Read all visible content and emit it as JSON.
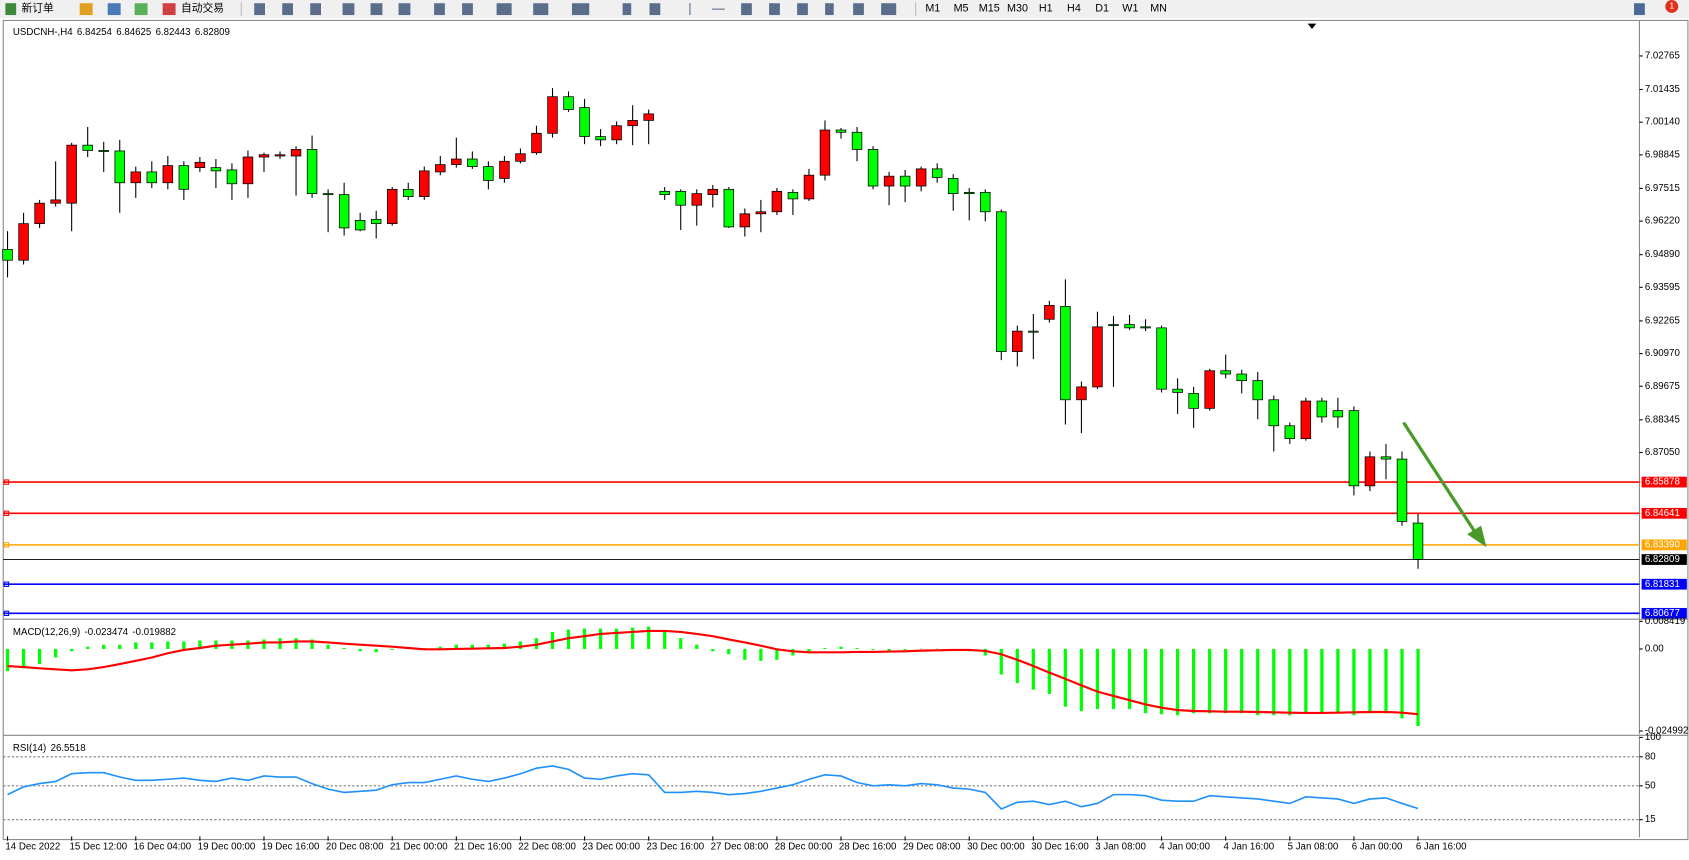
{
  "toolbar": {
    "new_order": "新订单",
    "auto_trading": "自动交易",
    "timeframes": [
      "M1",
      "M5",
      "M15",
      "M30",
      "H1",
      "H4",
      "D1",
      "W1",
      "MN"
    ],
    "badge": 1
  },
  "chart_data": [
    {
      "type": "candlestick",
      "title": "USDCNH-,H4",
      "up_color": "#ff0000",
      "down_color": "#00ff00",
      "ylim": [
        6.8053,
        7.0413
      ],
      "yticks": [
        7.02765,
        7.01435,
        {
          "value": 7.0014,
          "label": "7.00140"
        },
        6.98845,
        6.97515,
        {
          "value": 6.9622,
          "label": "6.96220"
        },
        {
          "value": 6.9489,
          "label": "6.94890"
        },
        6.93595,
        6.92265,
        {
          "value": 6.9097,
          "label": "6.90970"
        },
        6.89675,
        6.88345,
        {
          "value": 6.8705,
          "label": "6.87050"
        }
      ],
      "hlines": [
        {
          "value": 6.85878,
          "color": "#ff0000"
        },
        {
          "value": 6.84641,
          "color": "#ff0000"
        },
        {
          "value": 6.8339,
          "label": "6.83390",
          "color": "#ffa500"
        },
        {
          "value": 6.81831,
          "color": "#0000ff"
        },
        {
          "value": 6.80677,
          "color": "#0000ff"
        }
      ],
      "categories": [
        "14 Dec 2022",
        null,
        null,
        null,
        "15 Dec 12:00",
        null,
        null,
        null,
        "16 Dec 04:00",
        null,
        null,
        null,
        "19 Dec 00:00",
        null,
        null,
        null,
        "19 Dec 16:00",
        null,
        null,
        null,
        "20 Dec 08:00",
        null,
        null,
        null,
        "21 Dec 00:00",
        null,
        null,
        null,
        "21 Dec 16:00",
        null,
        null,
        null,
        "22 Dec 08:00",
        null,
        null,
        null,
        "23 Dec 00:00",
        null,
        null,
        null,
        "23 Dec 16:00",
        null,
        null,
        null,
        "27 Dec 08:00",
        null,
        null,
        null,
        "28 Dec 00:00",
        null,
        null,
        null,
        "28 Dec 16:00",
        null,
        null,
        null,
        "29 Dec 08:00",
        null,
        null,
        null,
        "30 Dec 00:00",
        null,
        null,
        null,
        "30 Dec 16:00",
        null,
        null,
        null,
        "3 Jan 08:00",
        null,
        null,
        null,
        "4 Jan 00:00",
        null,
        null,
        null,
        "4 Jan 16:00",
        null,
        null,
        null,
        "5 Jan 08:00",
        null,
        null,
        null,
        "6 Jan 00:00",
        null,
        null,
        null,
        "6 Jan 16:00"
      ],
      "candles": [
        [
          6.951,
          6.9582,
          6.9399,
          6.9467
        ],
        [
          6.9467,
          6.9655,
          6.945,
          6.9612
        ],
        [
          6.9612,
          6.9706,
          6.9595,
          6.9693
        ],
        [
          6.9693,
          6.9859,
          6.968,
          6.9706
        ],
        [
          6.9693,
          6.9932,
          6.9582,
          6.9923
        ],
        [
          6.9923,
          6.9995,
          6.9876,
          6.9902
        ],
        [
          6.9902,
          6.9936,
          6.9817,
          6.99
        ],
        [
          6.99,
          6.9944,
          6.9655,
          6.9774
        ],
        [
          6.9774,
          6.9838,
          6.9714,
          6.9817
        ],
        [
          6.9817,
          6.9859,
          6.9753,
          6.9774
        ],
        [
          6.9774,
          6.988,
          6.9748,
          6.9842
        ],
        [
          6.9842,
          6.9859,
          6.9706,
          6.9748
        ],
        [
          6.9834,
          6.9876,
          6.9817,
          6.9855
        ],
        [
          6.9834,
          6.9868,
          6.9753,
          6.9821
        ],
        [
          6.9825,
          6.9851,
          6.9706,
          6.977
        ],
        [
          6.977,
          6.9902,
          6.9714,
          6.9876
        ],
        [
          6.9876,
          6.9893,
          6.9817,
          6.9885
        ],
        [
          6.988,
          6.9898,
          6.9868,
          6.9885
        ],
        [
          6.988,
          6.9919,
          6.9723,
          6.9906
        ],
        [
          6.9906,
          6.9961,
          6.9714,
          6.9731
        ],
        [
          6.9731,
          6.9748,
          6.9578,
          6.9727
        ],
        [
          6.9727,
          6.9774,
          6.9565,
          6.9595
        ],
        [
          6.9625,
          6.9655,
          6.9582,
          6.9587
        ],
        [
          6.9629,
          6.9663,
          6.9553,
          6.9612
        ],
        [
          6.9612,
          6.9757,
          6.9604,
          6.9748
        ],
        [
          6.9748,
          6.9774,
          6.9706,
          6.9719
        ],
        [
          6.9719,
          6.9838,
          6.9706,
          6.9821
        ],
        [
          6.9817,
          6.988,
          6.9804,
          6.9846
        ],
        [
          6.9846,
          6.9953,
          6.9834,
          6.9868
        ],
        [
          6.9868,
          6.9898,
          6.9829,
          6.9838
        ],
        [
          6.9838,
          6.9859,
          6.9748,
          6.9783
        ],
        [
          6.9791,
          6.988,
          6.9774,
          6.9859
        ],
        [
          6.9859,
          6.991,
          6.9851,
          6.9889
        ],
        [
          6.9893,
          7.0,
          6.9885,
          6.997
        ],
        [
          6.997,
          7.0149,
          6.9953,
          7.0115
        ],
        [
          7.0115,
          7.0136,
          7.0055,
          7.0064
        ],
        [
          7.0072,
          7.0106,
          6.9927,
          6.9957
        ],
        [
          6.9957,
          6.9987,
          6.9919,
          6.9944
        ],
        [
          6.9944,
          7.0017,
          6.9927,
          7.0
        ],
        [
          7.0,
          7.0081,
          6.9923,
          7.0021
        ],
        [
          7.0021,
          7.0064,
          6.9927,
          7.0047
        ],
        [
          6.974,
          6.9757,
          6.9706,
          6.9727
        ],
        [
          6.974,
          6.9748,
          6.9587,
          6.9685
        ],
        [
          6.9685,
          6.9748,
          6.9604,
          6.9731
        ],
        [
          6.9727,
          6.9765,
          6.9676,
          6.9748
        ],
        [
          6.9748,
          6.9757,
          6.9595,
          6.9599
        ],
        [
          6.9599,
          6.9672,
          6.9561,
          6.9651
        ],
        [
          6.9651,
          6.9706,
          6.9578,
          6.9659
        ],
        [
          6.9659,
          6.9753,
          6.9646,
          6.974
        ],
        [
          6.9736,
          6.9748,
          6.9646,
          6.971
        ],
        [
          6.971,
          6.9829,
          6.9702,
          6.9804
        ],
        [
          6.9804,
          7.0021,
          6.9783,
          6.9983
        ],
        [
          6.9983,
          6.9991,
          6.9949,
          6.9974
        ],
        [
          6.9974,
          6.9995,
          6.9859,
          6.9906
        ],
        [
          6.9906,
          6.9919,
          6.9748,
          6.9761
        ],
        [
          6.9761,
          6.9817,
          6.9685,
          6.98
        ],
        [
          6.98,
          6.9825,
          6.9697,
          6.9761
        ],
        [
          6.9761,
          6.9838,
          6.974,
          6.9829
        ],
        [
          6.9829,
          6.9851,
          6.9774,
          6.9795
        ],
        [
          6.9791,
          6.9808,
          6.9663,
          6.9731
        ],
        [
          6.9736,
          6.9753,
          6.9625,
          6.9731
        ],
        [
          6.9736,
          6.9748,
          6.9621,
          6.9659
        ],
        [
          6.9659,
          6.9668,
          6.9071,
          6.9105
        ],
        [
          6.9105,
          6.9208,
          6.9046,
          6.9186
        ],
        [
          6.9186,
          6.9254,
          6.9075,
          6.9184
        ],
        [
          6.9233,
          6.9306,
          6.922,
          6.9288
        ],
        [
          6.9284,
          6.9391,
          6.8816,
          6.8914
        ],
        [
          6.8914,
          6.8986,
          6.8782,
          6.8965
        ],
        [
          6.8965,
          6.9263,
          6.8956,
          6.9203
        ],
        [
          6.9212,
          6.9246,
          6.8965,
          6.9208
        ],
        [
          6.9212,
          6.925,
          6.9191,
          6.9199
        ],
        [
          6.9203,
          6.9233,
          6.9186,
          6.9199
        ],
        [
          6.9199,
          6.9208,
          6.8943,
          6.8956
        ],
        [
          6.8956,
          6.8999,
          6.8858,
          6.8943
        ],
        [
          6.8939,
          6.8965,
          6.8803,
          6.888
        ],
        [
          6.888,
          6.9037,
          6.8871,
          6.9029
        ],
        [
          6.9029,
          6.9093,
          6.8999,
          6.9016
        ],
        [
          6.9016,
          6.9033,
          6.8939,
          6.899
        ],
        [
          6.899,
          6.9024,
          6.8837,
          6.8914
        ],
        [
          6.8914,
          6.8931,
          6.8709,
          6.8811
        ],
        [
          6.8811,
          6.8824,
          6.8739,
          6.876
        ],
        [
          6.876,
          6.8922,
          6.8752,
          6.8909
        ],
        [
          6.8909,
          6.8922,
          6.8824,
          6.8846
        ],
        [
          6.8871,
          6.8922,
          6.8803,
          6.8846
        ],
        [
          6.8871,
          6.8888,
          6.8535,
          6.8573
        ],
        [
          6.8573,
          6.8709,
          6.8552,
          6.8688
        ],
        [
          6.8688,
          6.8739,
          6.8599,
          6.8679
        ],
        [
          6.8679,
          6.8709,
          6.8415,
          6.8432
        ],
        [
          6.84254,
          6.84625,
          6.82443,
          6.82809
        ]
      ]
    },
    {
      "type": "macd",
      "title": "MACD(12,26,9)",
      "ylim": [
        -0.024992,
        0.008419
      ],
      "yticks": [
        0.008419,
        {
          "value": 0,
          "label": "0.00"
        },
        -0.024992
      ],
      "series": [
        {
          "color": "#00ff00",
          "values": [
            -0.0068,
            -0.0059,
            -0.0046,
            -0.0026,
            -0.0007,
            0.0007,
            0.0013,
            0.0013,
            0.002,
            0.002,
            0.0023,
            0.0023,
            0.0026,
            0.0026,
            0.0026,
            0.0026,
            0.0029,
            0.0033,
            0.0033,
            0.0029,
            0.0013,
            0.0003,
            -0.0007,
            -0.001,
            -0.0003,
            0.0001,
            0.0003,
            0.0007,
            0.0013,
            0.0013,
            0.0013,
            0.0016,
            0.0023,
            0.0033,
            0.0052,
            0.0059,
            0.0062,
            0.0062,
            0.0062,
            0.0065,
            0.0068,
            0.0052,
            0.0033,
            0.0013,
            -0.0007,
            -0.0016,
            -0.0033,
            -0.0036,
            -0.0033,
            -0.002,
            -0.0007,
            0.0003,
            0.0007,
            0.0003,
            -0.0003,
            -0.0007,
            -0.0003,
            0.0001,
            0.0001,
            -0.0003,
            -0.0007,
            -0.002,
            -0.0078,
            -0.0104,
            -0.0124,
            -0.0137,
            -0.0176,
            -0.0189,
            -0.0183,
            -0.0183,
            -0.0183,
            -0.0196,
            -0.0199,
            -0.0202,
            -0.0196,
            -0.0196,
            -0.0196,
            -0.0196,
            -0.0202,
            -0.0202,
            -0.0202,
            -0.0196,
            -0.0196,
            -0.0196,
            -0.0202,
            -0.0196,
            -0.0196,
            -0.0212,
            -0.023474
          ]
        },
        {
          "color": "#ff0000",
          "values": [
            -0.0052,
            -0.0055,
            -0.0059,
            -0.0062,
            -0.0065,
            -0.0062,
            -0.0055,
            -0.0046,
            -0.0036,
            -0.0026,
            -0.0013,
            -0.0003,
            0.0003,
            0.001,
            0.0013,
            0.0016,
            0.002,
            0.002,
            0.0023,
            0.0023,
            0.002,
            0.0016,
            0.0013,
            0.001,
            0.0007,
            0.0003,
            -0.0001,
            -0.0001,
            0.0,
            0.0001,
            0.0002,
            0.0003,
            0.0007,
            0.0013,
            0.0023,
            0.0033,
            0.0039,
            0.0046,
            0.0049,
            0.0052,
            0.0055,
            0.0055,
            0.0052,
            0.0046,
            0.0039,
            0.0029,
            0.002,
            0.001,
            -0.0001,
            -0.0007,
            -0.001,
            -0.001,
            -0.001,
            -0.0009,
            -0.0009,
            -0.0008,
            -0.0007,
            -0.0005,
            -0.0004,
            -0.0003,
            -0.0003,
            -0.0006,
            -0.0016,
            -0.0033,
            -0.0052,
            -0.0072,
            -0.0091,
            -0.0111,
            -0.013,
            -0.0143,
            -0.0156,
            -0.0169,
            -0.0179,
            -0.0186,
            -0.0189,
            -0.019,
            -0.0191,
            -0.0191,
            -0.0192,
            -0.0193,
            -0.0194,
            -0.0195,
            -0.0195,
            -0.0194,
            -0.0193,
            -0.0192,
            -0.0192,
            -0.0194,
            -0.019882
          ]
        }
      ]
    },
    {
      "type": "rsi",
      "title": "RSI(14)",
      "ylim": [
        0,
        100
      ],
      "yticks": [
        100,
        80,
        50,
        15
      ],
      "grid": true,
      "series": [
        {
          "color": "#1e90ff",
          "values": [
            40.9,
            48.9,
            52.3,
            54.5,
            62.5,
            63.6,
            63.6,
            59.1,
            55.7,
            55.7,
            56.8,
            58.0,
            55.7,
            54.5,
            58.0,
            55.7,
            60.2,
            59.1,
            59.1,
            52.3,
            46.6,
            43.2,
            44.3,
            45.5,
            51.1,
            53.4,
            53.4,
            56.8,
            60.2,
            56.8,
            54.5,
            58.0,
            62.5,
            68.2,
            70.5,
            67.0,
            58.0,
            56.8,
            60.2,
            62.5,
            61.4,
            43.2,
            43.2,
            44.3,
            43.2,
            40.9,
            42.0,
            44.3,
            47.7,
            51.1,
            56.8,
            61.4,
            60.2,
            53.4,
            50.0,
            51.1,
            50.0,
            52.3,
            51.1,
            47.7,
            46.6,
            43.2,
            26.1,
            33.0,
            34.1,
            30.7,
            34.1,
            28.4,
            31.8,
            40.9,
            40.9,
            39.8,
            35.2,
            34.1,
            34.1,
            39.8,
            38.6,
            37.5,
            36.4,
            34.1,
            31.8,
            38.6,
            37.5,
            36.4,
            31.8,
            36.4,
            37.5,
            31.8,
            26.5518
          ]
        }
      ]
    }
  ]
}
